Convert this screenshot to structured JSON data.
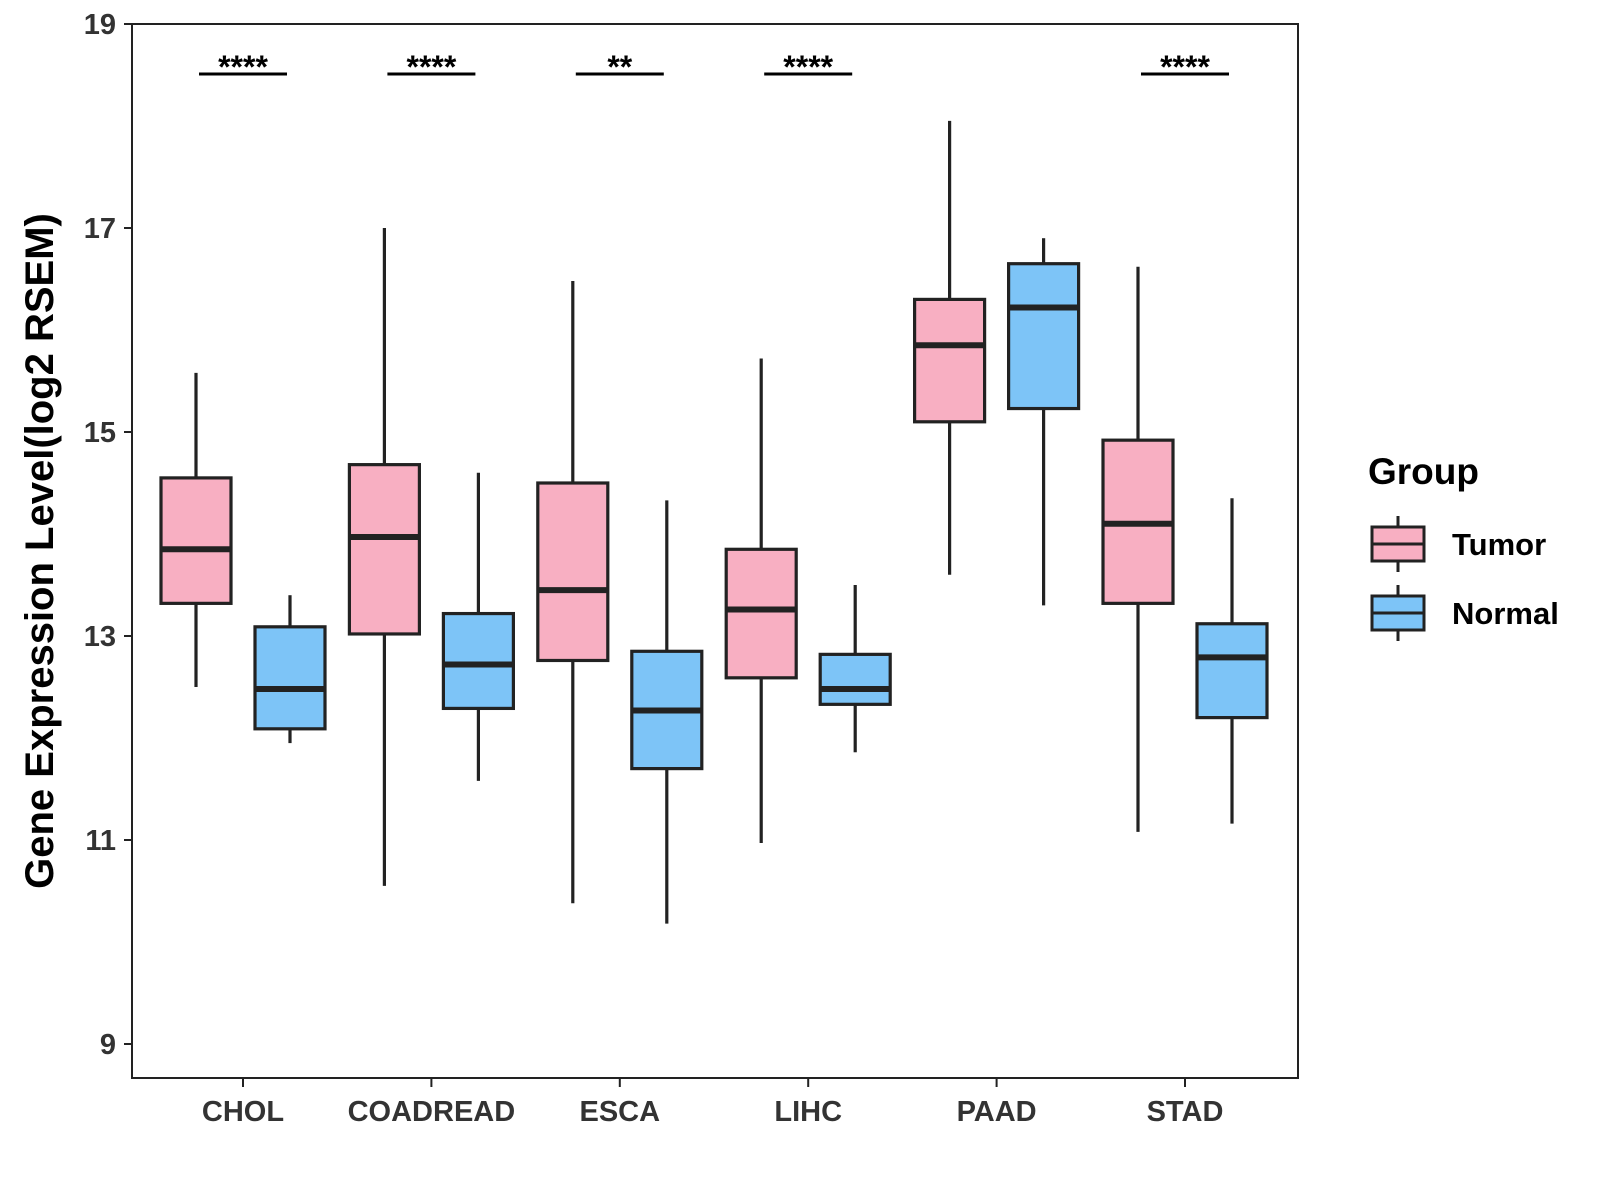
{
  "chart_data": {
    "type": "box",
    "title": "",
    "xlabel": "",
    "ylabel": "Gene Expression Level(log2 RSEM)",
    "ylim": [
      8.7,
      19.0
    ],
    "yticks": [
      9,
      11,
      13,
      15,
      17,
      19
    ],
    "categories": [
      "CHOL",
      "COADREAD",
      "ESCA",
      "LIHC",
      "PAAD",
      "STAD"
    ],
    "legend": {
      "title": "Group",
      "position": "right",
      "entries": [
        "Tumor",
        "Normal"
      ]
    },
    "series": [
      {
        "name": "Tumor",
        "color": "#F8AFC2",
        "boxes": [
          {
            "category": "CHOL",
            "min": 12.5,
            "q1": 13.32,
            "median": 13.85,
            "q3": 14.55,
            "max": 15.58
          },
          {
            "category": "COADREAD",
            "min": 10.55,
            "q1": 13.02,
            "median": 13.97,
            "q3": 14.68,
            "max": 17.0
          },
          {
            "category": "ESCA",
            "min": 10.38,
            "q1": 12.76,
            "median": 13.45,
            "q3": 14.5,
            "max": 16.48
          },
          {
            "category": "LIHC",
            "min": 10.97,
            "q1": 12.59,
            "median": 13.26,
            "q3": 13.85,
            "max": 15.72
          },
          {
            "category": "PAAD",
            "min": 13.6,
            "q1": 15.1,
            "median": 15.85,
            "q3": 16.3,
            "max": 18.05
          },
          {
            "category": "STAD",
            "min": 11.08,
            "q1": 13.32,
            "median": 14.1,
            "q3": 14.92,
            "max": 16.62
          }
        ]
      },
      {
        "name": "Normal",
        "color": "#7DC4F7",
        "boxes": [
          {
            "category": "CHOL",
            "min": 11.95,
            "q1": 12.09,
            "median": 12.48,
            "q3": 13.09,
            "max": 13.4
          },
          {
            "category": "COADREAD",
            "min": 11.58,
            "q1": 12.29,
            "median": 12.72,
            "q3": 13.22,
            "max": 14.6
          },
          {
            "category": "ESCA",
            "min": 10.18,
            "q1": 11.7,
            "median": 12.27,
            "q3": 12.85,
            "max": 14.33
          },
          {
            "category": "LIHC",
            "min": 11.86,
            "q1": 12.33,
            "median": 12.48,
            "q3": 12.82,
            "max": 13.5
          },
          {
            "category": "PAAD",
            "min": 13.3,
            "q1": 15.23,
            "median": 16.22,
            "q3": 16.65,
            "max": 16.9
          },
          {
            "category": "STAD",
            "min": 11.16,
            "q1": 12.2,
            "median": 12.79,
            "q3": 13.12,
            "max": 14.35
          }
        ]
      }
    ],
    "significance": [
      {
        "category": "CHOL",
        "label": "****"
      },
      {
        "category": "COADREAD",
        "label": "****"
      },
      {
        "category": "ESCA",
        "label": "**"
      },
      {
        "category": "LIHC",
        "label": "****"
      },
      {
        "category": "PAAD",
        "label": ""
      },
      {
        "category": "STAD",
        "label": "****"
      }
    ],
    "significance_y": 18.52,
    "grid": false
  }
}
